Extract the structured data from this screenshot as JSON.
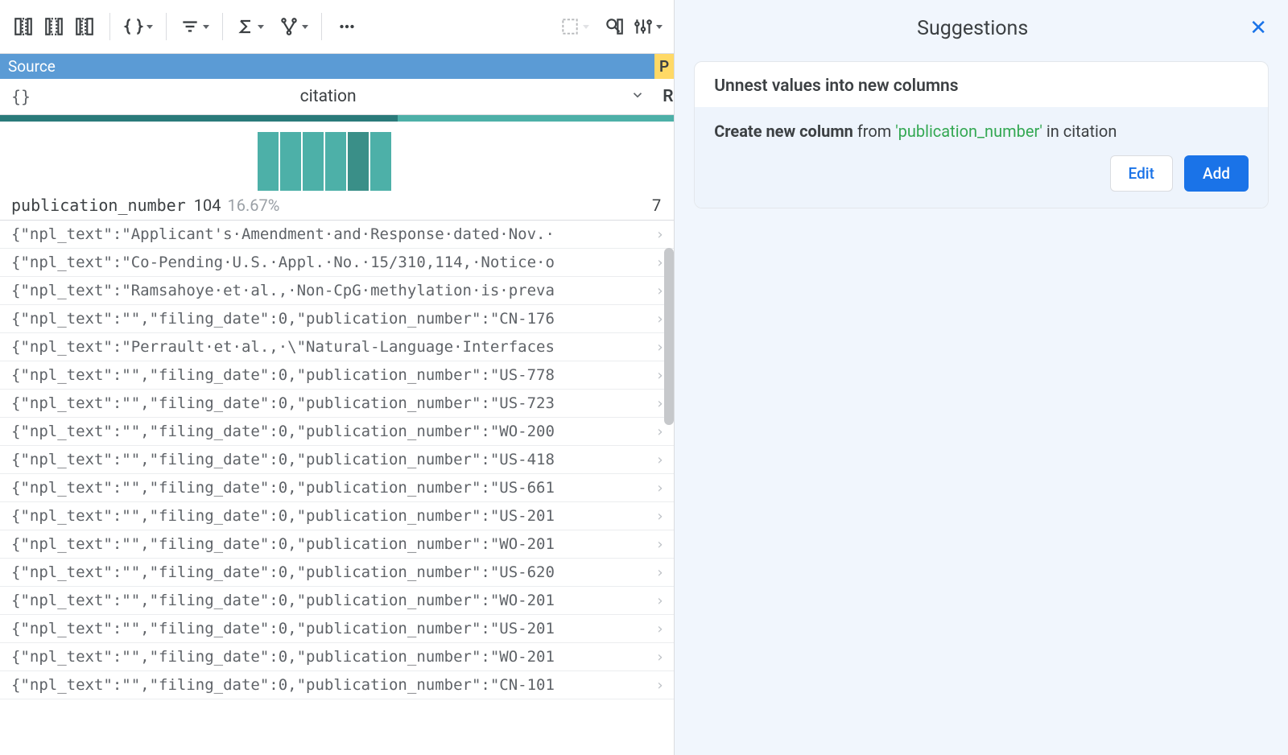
{
  "toolbar": {
    "icons": [
      "add-col-left",
      "add-col-mid",
      "add-col-right",
      "braces",
      "filter",
      "sigma",
      "merge",
      "more",
      "select-area",
      "find-col",
      "settings"
    ]
  },
  "source_header": {
    "label": "Source",
    "next_col_initial": "P"
  },
  "column": {
    "type_badge": "{}",
    "name": "citation",
    "next_initial": "R",
    "teal_strip": {
      "dark_pct": 59,
      "light_pct": 41
    }
  },
  "histogram": {
    "bars": [
      {
        "height_pct": 85,
        "color": "#4db0a8"
      },
      {
        "height_pct": 85,
        "color": "#4db0a8"
      },
      {
        "height_pct": 85,
        "color": "#4db0a8"
      },
      {
        "height_pct": 85,
        "color": "#4db0a8"
      },
      {
        "height_pct": 85,
        "color": "#3a8f88"
      },
      {
        "height_pct": 85,
        "color": "#4db0a8"
      }
    ]
  },
  "stats": {
    "label": "publication_number",
    "count": "104",
    "pct": "16.67%",
    "right_val": "7"
  },
  "rows": [
    "{\"npl_text\":\"Applicant's·Amendment·and·Response·dated·Nov.·",
    "{\"npl_text\":\"Co-Pending·U.S.·Appl.·No.·15/310,114,·Notice·o",
    "{\"npl_text\":\"Ramsahoye·et·al.,·Non-CpG·methylation·is·preva",
    "{\"npl_text\":\"\",\"filing_date\":0,\"publication_number\":\"CN-176",
    "{\"npl_text\":\"Perrault·et·al.,·\\\"Natural-Language·Interfaces",
    "{\"npl_text\":\"\",\"filing_date\":0,\"publication_number\":\"US-778",
    "{\"npl_text\":\"\",\"filing_date\":0,\"publication_number\":\"US-723",
    "{\"npl_text\":\"\",\"filing_date\":0,\"publication_number\":\"WO-200",
    "{\"npl_text\":\"\",\"filing_date\":0,\"publication_number\":\"US-418",
    "{\"npl_text\":\"\",\"filing_date\":0,\"publication_number\":\"US-661",
    "{\"npl_text\":\"\",\"filing_date\":0,\"publication_number\":\"US-201",
    "{\"npl_text\":\"\",\"filing_date\":0,\"publication_number\":\"WO-201",
    "{\"npl_text\":\"\",\"filing_date\":0,\"publication_number\":\"US-620",
    "{\"npl_text\":\"\",\"filing_date\":0,\"publication_number\":\"WO-201",
    "{\"npl_text\":\"\",\"filing_date\":0,\"publication_number\":\"US-201",
    "{\"npl_text\":\"\",\"filing_date\":0,\"publication_number\":\"WO-201",
    "{\"npl_text\":\"\",\"filing_date\":0,\"publication_number\":\"CN-101"
  ],
  "suggestions": {
    "title": "Suggestions",
    "card_title": "Unnest values into new columns",
    "desc_prefix_bold": "Create new column",
    "desc_mid": " from ",
    "desc_green": "'publication_number'",
    "desc_suffix": " in citation",
    "edit_label": "Edit",
    "add_label": "Add"
  },
  "colors": {
    "source_bg": "#5b9bd5",
    "p_bg": "#ffd966",
    "teal_dark": "#2a7a7a",
    "teal_light": "#4db0a8",
    "link_blue": "#1a73e8",
    "green": "#34a853",
    "right_bg": "#f1f6fd",
    "card_body_bg": "#eef4fc"
  }
}
